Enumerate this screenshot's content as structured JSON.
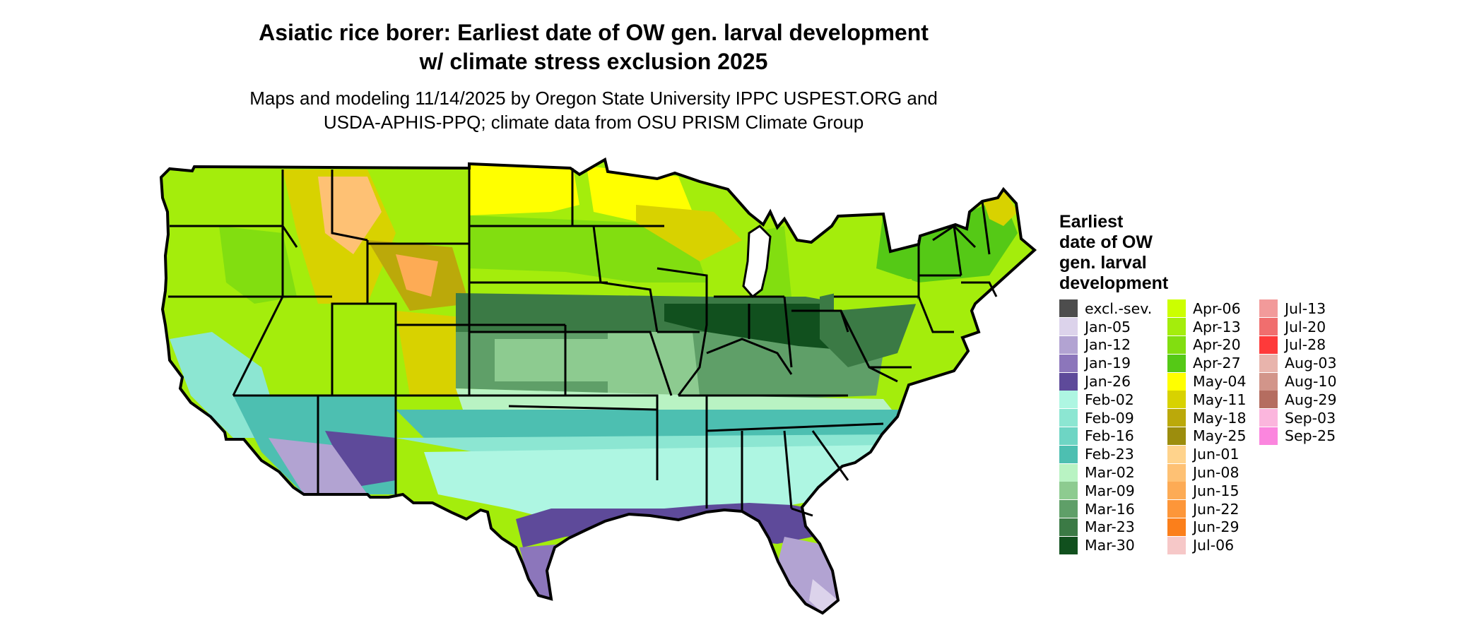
{
  "title_line1": "Asiatic rice borer: Earliest date of OW gen. larval development",
  "title_line2": "w/ climate stress exclusion 2025",
  "subtitle_line1": "Maps and modeling 11/14/2025 by Oregon State University IPPC USPEST.ORG and",
  "subtitle_line2": "USDA-APHIS-PPQ; climate data from OSU PRISM Climate Group",
  "legend": {
    "title_lines": [
      "Earliest",
      "date of OW",
      "gen. larval",
      "development"
    ],
    "items": [
      {
        "label": "excl.-sev.",
        "color": "#4d4d4d"
      },
      {
        "label": "Jan-05",
        "color": "#dcd3eb"
      },
      {
        "label": "Jan-12",
        "color": "#b2a3d2"
      },
      {
        "label": "Jan-19",
        "color": "#8c76bb"
      },
      {
        "label": "Jan-26",
        "color": "#5e4a9a"
      },
      {
        "label": "Feb-02",
        "color": "#aef6e2"
      },
      {
        "label": "Feb-09",
        "color": "#8ce6d2"
      },
      {
        "label": "Feb-16",
        "color": "#6ed5c4"
      },
      {
        "label": "Feb-23",
        "color": "#4dbfb1"
      },
      {
        "label": "Mar-02",
        "color": "#b9f3c3"
      },
      {
        "label": "Mar-09",
        "color": "#8dcb90"
      },
      {
        "label": "Mar-16",
        "color": "#5f9f68"
      },
      {
        "label": "Mar-23",
        "color": "#3b7a45"
      },
      {
        "label": "Mar-30",
        "color": "#11501e"
      },
      {
        "label": "Apr-06",
        "color": "#ccff00"
      },
      {
        "label": "Apr-13",
        "color": "#a4ed0c"
      },
      {
        "label": "Apr-20",
        "color": "#82de10"
      },
      {
        "label": "Apr-27",
        "color": "#55c916"
      },
      {
        "label": "May-04",
        "color": "#ffff00"
      },
      {
        "label": "May-11",
        "color": "#d8d200"
      },
      {
        "label": "May-18",
        "color": "#bba90a"
      },
      {
        "label": "May-25",
        "color": "#9c8d0d"
      },
      {
        "label": "Jun-01",
        "color": "#ffd38c"
      },
      {
        "label": "Jun-08",
        "color": "#fec174"
      },
      {
        "label": "Jun-15",
        "color": "#fdab55"
      },
      {
        "label": "Jun-22",
        "color": "#fd9639"
      },
      {
        "label": "Jun-29",
        "color": "#fb7f1b"
      },
      {
        "label": "Jul-06",
        "color": "#f6c8c8"
      },
      {
        "label": "Jul-13",
        "color": "#f29a9a"
      },
      {
        "label": "Jul-20",
        "color": "#f06e6e"
      },
      {
        "label": "Jul-28",
        "color": "#fe3a3a"
      },
      {
        "label": "Aug-03",
        "color": "#e8b4ac"
      },
      {
        "label": "Aug-10",
        "color": "#d2958a"
      },
      {
        "label": "Aug-29",
        "color": "#b56d60"
      },
      {
        "label": "Sep-03",
        "color": "#fbb6dd"
      },
      {
        "label": "Sep-25",
        "color": "#fb86de"
      }
    ]
  }
}
